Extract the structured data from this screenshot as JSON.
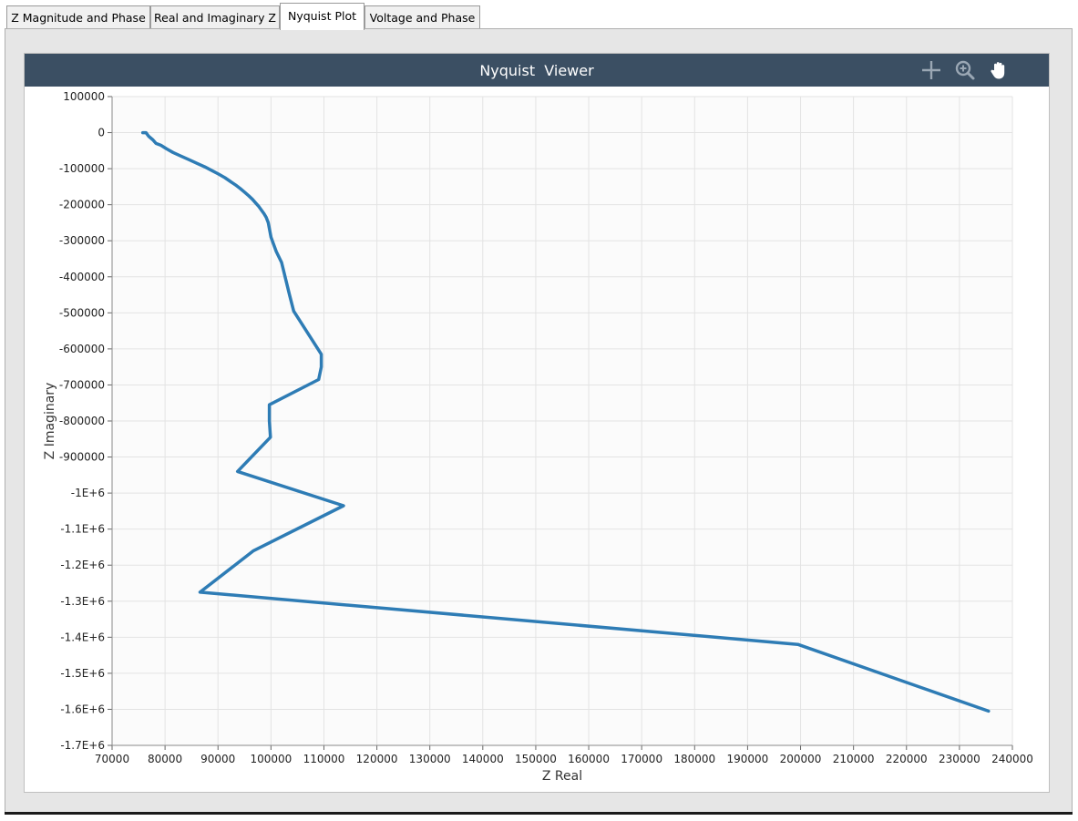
{
  "tabs": [
    {
      "label": "Z Magnitude and Phase",
      "active": false
    },
    {
      "label": "Real and Imaginary Z",
      "active": false
    },
    {
      "label": "Nyquist Plot",
      "active": true
    },
    {
      "label": "Voltage and Phase",
      "active": false
    }
  ],
  "viewer": {
    "title": "Nyquist  Viewer",
    "tools": [
      "crosshair-icon",
      "zoom-in-icon",
      "pan-hand-icon"
    ],
    "header_color": "#3b4f63"
  },
  "chart_data": {
    "type": "line",
    "xlabel": "Z Real",
    "ylabel": "Z Imaginary",
    "xlim": [
      70000,
      240000
    ],
    "ylim": [
      -1700000,
      100000
    ],
    "x_ticks": [
      "70000",
      "80000",
      "90000",
      "100000",
      "110000",
      "120000",
      "130000",
      "140000",
      "150000",
      "160000",
      "170000",
      "180000",
      "190000",
      "200000",
      "210000",
      "220000",
      "230000",
      "240000"
    ],
    "y_ticks": [
      "100000",
      "0",
      "-100000",
      "-200000",
      "-300000",
      "-400000",
      "-500000",
      "-600000",
      "-700000",
      "-800000",
      "-900000",
      "-1E+6",
      "-1.1E+6",
      "-1.2E+6",
      "-1.3E+6",
      "-1.4E+6",
      "-1.5E+6",
      "-1.6E+6",
      "-1.7E+6"
    ],
    "grid": true,
    "series": [
      {
        "color": "#2e7cb5",
        "x": [
          75800,
          76400,
          76900,
          77700,
          78300,
          79200,
          80300,
          81500,
          83000,
          84500,
          86000,
          87500,
          88800,
          90100,
          91300,
          92300,
          93300,
          94200,
          95000,
          95800,
          96500,
          97100,
          97700,
          98200,
          98700,
          99100,
          99500,
          100000,
          101000,
          102000,
          103000,
          103500,
          104300,
          109500,
          109500,
          109000,
          99700,
          99700,
          99900,
          93700,
          113700,
          96700,
          86600,
          199500,
          235500
        ],
        "y": [
          0,
          0,
          -10000,
          -20000,
          -30000,
          -35000,
          -45000,
          -55000,
          -65000,
          -75000,
          -85000,
          -95000,
          -105000,
          -115000,
          -125000,
          -135000,
          -145000,
          -155000,
          -165000,
          -175000,
          -185000,
          -195000,
          -205000,
          -215000,
          -225000,
          -235000,
          -250000,
          -290000,
          -330000,
          -360000,
          -420000,
          -450000,
          -495000,
          -615000,
          -650000,
          -685000,
          -755000,
          -800000,
          -845000,
          -940000,
          -1035000,
          -1160000,
          -1275000,
          -1420000,
          -1605000
        ]
      }
    ]
  }
}
